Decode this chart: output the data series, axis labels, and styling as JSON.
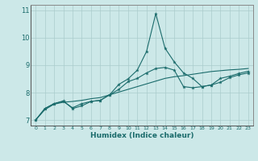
{
  "xlabel": "Humidex (Indice chaleur)",
  "background_color": "#cce8e8",
  "grid_color": "#aacccc",
  "line_color": "#1a6b6b",
  "xlim": [
    -0.5,
    23.5
  ],
  "ylim": [
    6.8,
    11.2
  ],
  "yticks": [
    7,
    8,
    9,
    10,
    11
  ],
  "xticks": [
    0,
    1,
    2,
    3,
    4,
    5,
    6,
    7,
    8,
    9,
    10,
    11,
    12,
    13,
    14,
    15,
    16,
    17,
    18,
    19,
    20,
    21,
    22,
    23
  ],
  "x": [
    0,
    1,
    2,
    3,
    4,
    5,
    6,
    7,
    8,
    9,
    10,
    11,
    12,
    13,
    14,
    15,
    16,
    17,
    18,
    19,
    20,
    21,
    22,
    23
  ],
  "line1": [
    7.0,
    7.42,
    7.6,
    7.7,
    7.42,
    7.52,
    7.68,
    7.72,
    7.92,
    8.3,
    8.5,
    8.82,
    9.5,
    10.88,
    9.62,
    9.12,
    8.72,
    8.52,
    8.22,
    8.28,
    8.52,
    8.6,
    8.7,
    8.78
  ],
  "line2": [
    7.0,
    7.42,
    7.6,
    7.68,
    7.45,
    7.6,
    7.68,
    7.72,
    7.92,
    8.12,
    8.4,
    8.52,
    8.72,
    8.88,
    8.92,
    8.82,
    8.22,
    8.18,
    8.22,
    8.28,
    8.38,
    8.55,
    8.65,
    8.72
  ],
  "line3": [
    7.0,
    7.38,
    7.58,
    7.65,
    7.68,
    7.72,
    7.78,
    7.82,
    7.92,
    8.02,
    8.12,
    8.22,
    8.32,
    8.42,
    8.52,
    8.58,
    8.62,
    8.67,
    8.72,
    8.77,
    8.8,
    8.83,
    8.85,
    8.88
  ]
}
